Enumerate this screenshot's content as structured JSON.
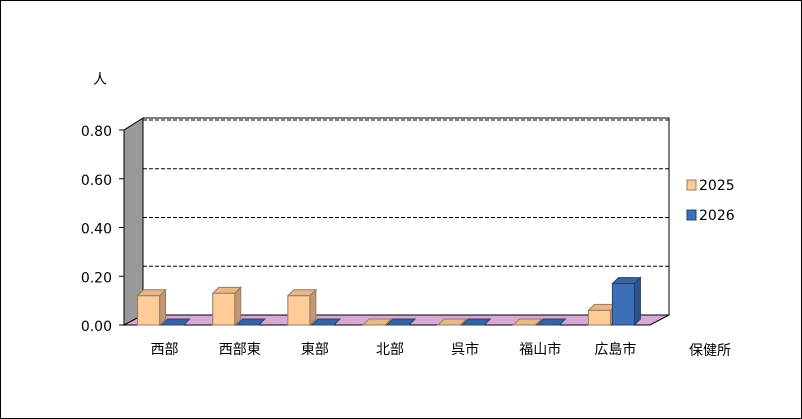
{
  "chart_data": {
    "type": "bar3d",
    "y_label": "人",
    "x_label": "保健所",
    "categories": [
      "西部",
      "西部東",
      "東部",
      "北部",
      "呉市",
      "福山市",
      "広島市"
    ],
    "series": [
      {
        "name": "2025",
        "color": "#ffcc99",
        "values": [
          0.12,
          0.13,
          0.12,
          0,
          0,
          0,
          0.06
        ]
      },
      {
        "name": "2026",
        "color": "#3d6fb6",
        "values": [
          0,
          0,
          0,
          0,
          0,
          0,
          0.17
        ]
      }
    ],
    "ylim": [
      0,
      0.8
    ],
    "yticks": [
      {
        "value": 0,
        "label": "0.00"
      },
      {
        "value": 0.2,
        "label": "0.20"
      },
      {
        "value": 0.4,
        "label": "0.40"
      },
      {
        "value": 0.6,
        "label": "0.60"
      },
      {
        "value": 0.8,
        "label": "0.80"
      }
    ],
    "grid": true,
    "legend": "right"
  }
}
